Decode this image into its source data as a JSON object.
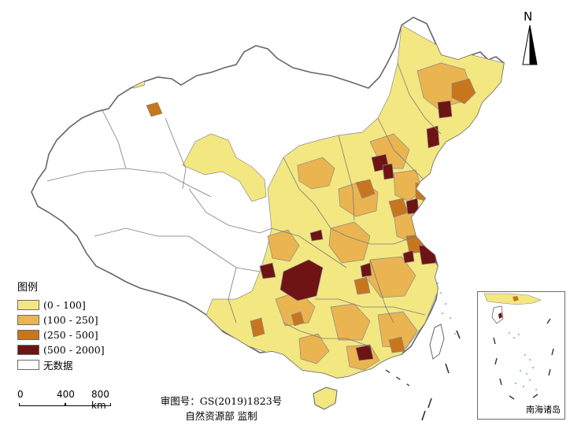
{
  "legend": {
    "title": "图例",
    "items": [
      {
        "label": "(0 - 100]",
        "color": "#f3e782"
      },
      {
        "label": "(100 - 250]",
        "color": "#eab450"
      },
      {
        "label": "(250 - 500]",
        "color": "#c8761e"
      },
      {
        "label": "(500 - 2000]",
        "color": "#6e1414"
      },
      {
        "label": "无数据",
        "color": "#ffffff"
      }
    ]
  },
  "scale_bar": {
    "ticks": [
      "0",
      "400",
      "800 km"
    ]
  },
  "credits": {
    "approval": "审图号：GS(2019)1823号",
    "supervisor": "自然资源部 监制"
  },
  "north_arrow": {
    "label": "N",
    "icon": "north-arrow-icon"
  },
  "inset": {
    "title": "南海诸岛"
  },
  "colors": {
    "no_data": "#ffffff",
    "border": "#6b6b6b",
    "sea_islands": "#5bb7d6"
  }
}
